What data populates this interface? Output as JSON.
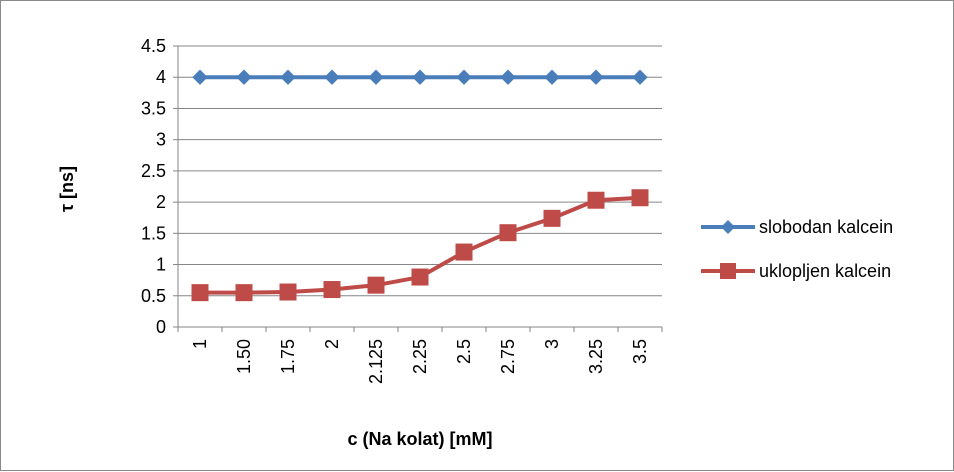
{
  "chart_data": {
    "type": "line",
    "title": "",
    "xlabel": "c (Na kolat) [mM]",
    "ylabel": "τ [ns]",
    "categories": [
      "1",
      "1.50",
      "1.75",
      "2",
      "2.125",
      "2.25",
      "2.5",
      "2.75",
      "3",
      "3.25",
      "3.5"
    ],
    "ylim": [
      0,
      4.5
    ],
    "yticks": [
      "0",
      "0.5",
      "1",
      "1.5",
      "2",
      "2.5",
      "3",
      "3.5",
      "4",
      "4.5"
    ],
    "grid": true,
    "legend_position": "right",
    "series": [
      {
        "name": "slobodan kalcein",
        "color": "#4A7EBB",
        "marker": "diamond",
        "values": [
          4,
          4,
          4,
          4,
          4,
          4,
          4,
          4,
          4,
          4,
          4
        ]
      },
      {
        "name": "uklopljen kalcein",
        "color": "#BE4B48",
        "marker": "square",
        "values": [
          0.55,
          0.55,
          0.56,
          0.6,
          0.67,
          0.8,
          1.2,
          1.51,
          1.74,
          2.03,
          2.07
        ]
      }
    ]
  }
}
